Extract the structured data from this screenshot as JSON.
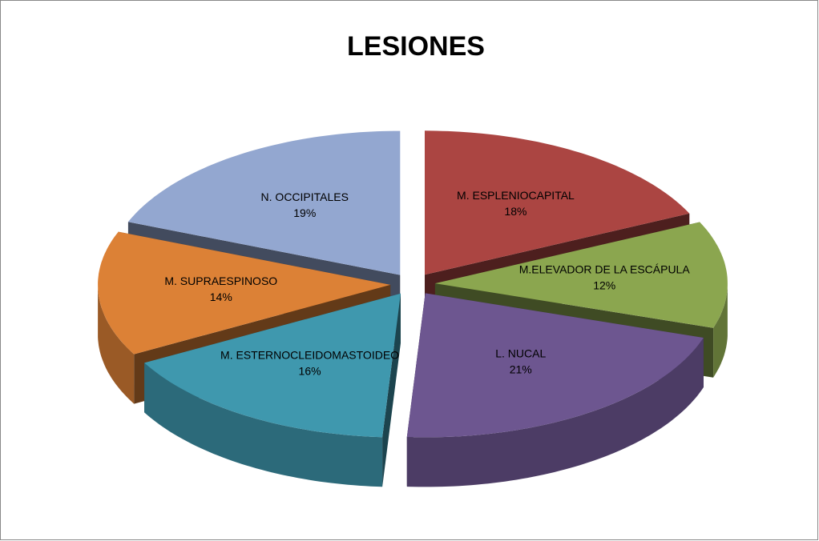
{
  "chart_data": {
    "type": "pie",
    "title": "LESIONES",
    "categories": [
      "M. ESPLENIOCAPITAL",
      "M.ELEVADOR DE LA ESCÁPULA",
      "L. NUCAL",
      "M. ESTERNOCLEIDOMASTOIDEO",
      "M. SUPRAESPINOSO",
      "N. OCCIPITALES"
    ],
    "values": [
      18,
      12,
      21,
      16,
      14,
      19
    ],
    "value_labels": [
      "18%",
      "12%",
      "21%",
      "16%",
      "14%",
      "19%"
    ],
    "colors": [
      "#ab4542",
      "#8ba64f",
      "#6d5690",
      "#3f98ae",
      "#dc8136",
      "#93a7d0"
    ]
  }
}
